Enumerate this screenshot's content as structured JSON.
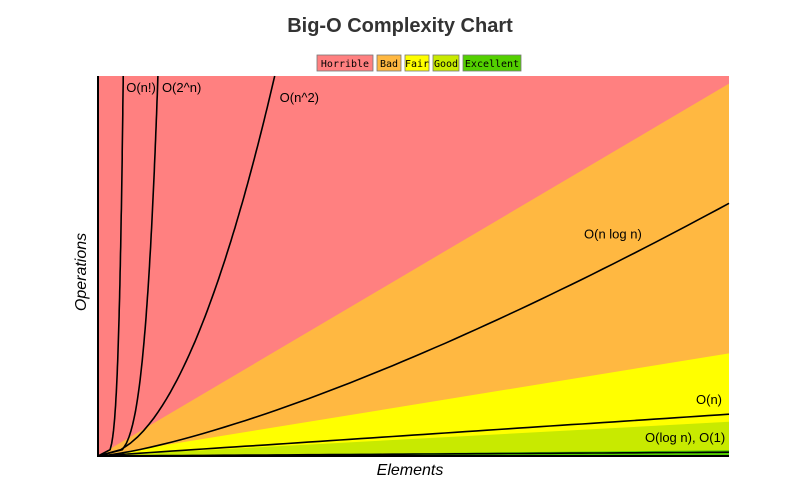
{
  "chart_data": {
    "type": "area",
    "title": "Big-O Complexity Chart",
    "xlabel": "Elements",
    "ylabel": "Operations",
    "xlim": [
      0,
      100
    ],
    "ylim": [
      0,
      100
    ],
    "grid": false,
    "legend_position": "top-center",
    "legend": [
      {
        "label": "Horrible",
        "color": "#ff8080"
      },
      {
        "label": "Bad",
        "color": "#ffb841"
      },
      {
        "label": "Fair",
        "color": "#ffff00"
      },
      {
        "label": "Good",
        "color": "#c8ea00"
      },
      {
        "label": "Excellent",
        "color": "#53d000"
      }
    ],
    "regions": [
      {
        "name": "Horrible",
        "color": "#ff8080",
        "upper_at_x100": 100
      },
      {
        "name": "Bad",
        "color": "#ffb841",
        "upper_at_x100": 98
      },
      {
        "name": "Fair",
        "color": "#ffff00",
        "upper_at_x100": 27
      },
      {
        "name": "Good",
        "color": "#c8ea00",
        "upper_at_x100": 9
      },
      {
        "name": "Excellent",
        "color": "#53d000",
        "upper_at_x100": 1.5
      }
    ],
    "series": [
      {
        "name": "O(n!)",
        "x_at_top": 4
      },
      {
        "name": "O(2^n)",
        "x_at_top": 9.5
      },
      {
        "name": "O(n^2)",
        "x_at_top": 28
      },
      {
        "name": "O(n log n)",
        "y_at_x100": 66.5
      },
      {
        "name": "O(n)",
        "y_at_x100": 11
      },
      {
        "name": "O(log n), O(1)",
        "y_at_x100": 1
      }
    ]
  }
}
